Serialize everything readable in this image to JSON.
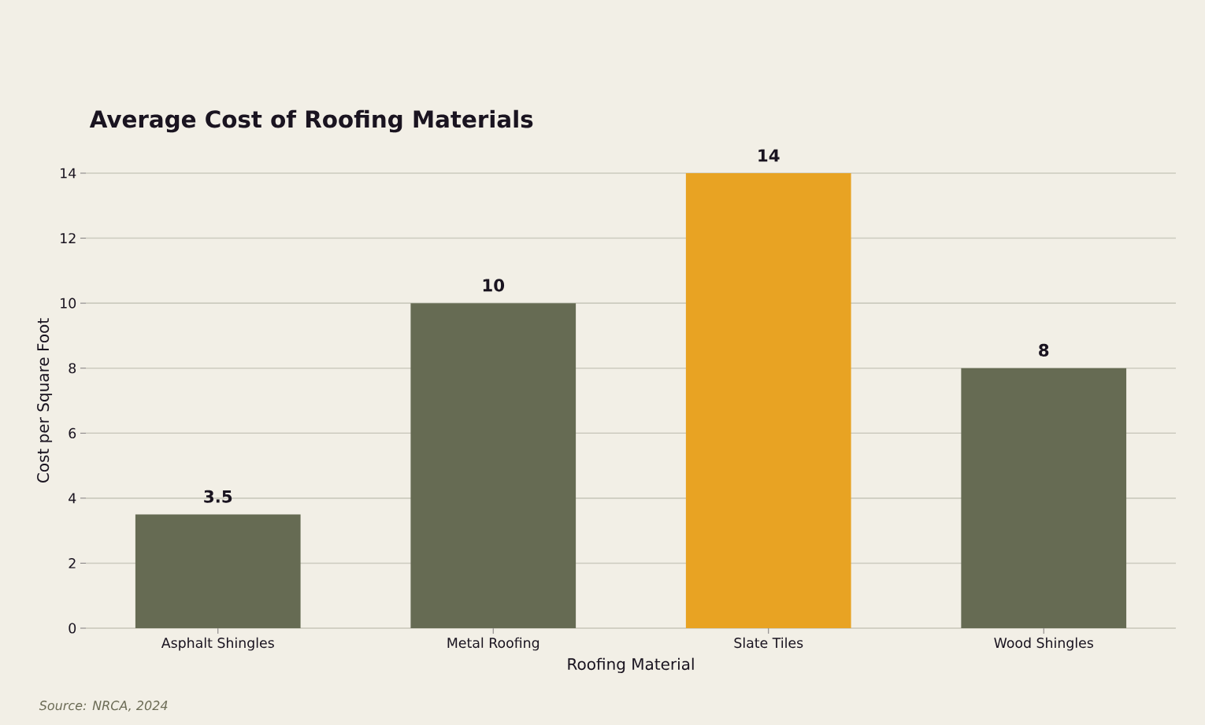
{
  "chart_data": {
    "type": "bar",
    "title": "Average Cost of Roofing Materials",
    "xlabel": "Roofing Material",
    "ylabel": "Cost per Square Foot",
    "categories": [
      "Asphalt Shingles",
      "Metal Roofing",
      "Slate Tiles",
      "Wood Shingles"
    ],
    "values": [
      3.5,
      10,
      14,
      8
    ],
    "colors": [
      "#666b53",
      "#666b53",
      "#e8a323",
      "#666b53"
    ],
    "ylim": [
      0,
      14
    ],
    "yticks": [
      0,
      2,
      4,
      6,
      8,
      10,
      12,
      14
    ],
    "grid": "y",
    "data_labels": true,
    "annotations": [
      "Source: NRCA, 2024"
    ]
  }
}
